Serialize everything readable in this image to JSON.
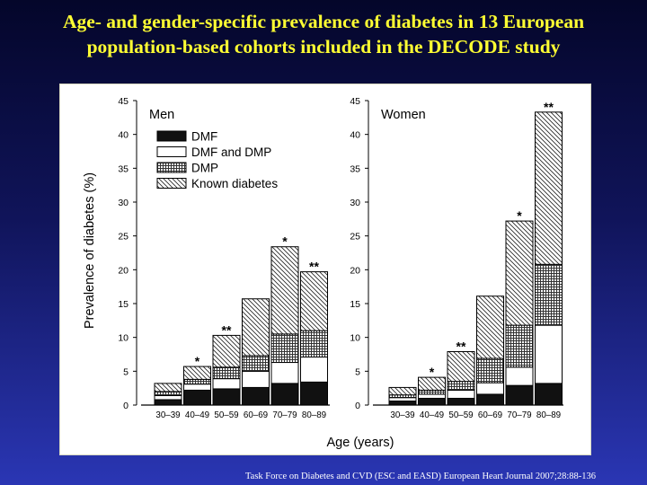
{
  "slide": {
    "title_line1": "Age- and gender-specific prevalence of diabetes in 13 European",
    "title_line2": "population-based cohorts included in the DECODE study",
    "citation": "Task Force on Diabetes and CVD (ESC and EASD) European Heart Journal 2007;28:88-136"
  },
  "chart_data": {
    "type": "bar",
    "stacked": true,
    "ylabel": "Prevalence of diabetes (%)",
    "xlabel": "Age (years)",
    "ylim": [
      0,
      45
    ],
    "yticks": [
      0,
      5,
      10,
      15,
      20,
      25,
      30,
      35,
      40,
      45
    ],
    "categories": [
      "30–39",
      "40–49",
      "50–59",
      "60–69",
      "70–79",
      "80–89"
    ],
    "legend": {
      "placement": "top-left of Men panel",
      "entries": [
        "DMF",
        "DMF and DMP",
        "DMP",
        "Known diabetes"
      ]
    },
    "panels": [
      {
        "name": "Men",
        "series": [
          {
            "name": "DMF",
            "fill": "solid",
            "values": [
              0.8,
              2.2,
              2.4,
              2.6,
              3.2,
              3.4
            ]
          },
          {
            "name": "DMF and DMP",
            "fill": "white",
            "values": [
              0.6,
              0.9,
              1.5,
              2.4,
              3.1,
              3.7
            ]
          },
          {
            "name": "DMP",
            "fill": "crosshatch",
            "values": [
              0.6,
              0.7,
              1.7,
              2.3,
              4.2,
              3.9
            ]
          },
          {
            "name": "Known diabetes",
            "fill": "diagonal",
            "values": [
              1.2,
              1.9,
              4.7,
              8.4,
              12.9,
              8.7
            ]
          }
        ],
        "annotations": [
          "",
          "*",
          "**",
          "",
          "*",
          "**"
        ]
      },
      {
        "name": "Women",
        "series": [
          {
            "name": "DMF",
            "fill": "solid",
            "values": [
              0.6,
              1.0,
              1.0,
              1.6,
              2.9,
              3.2
            ]
          },
          {
            "name": "DMF and DMP",
            "fill": "white",
            "values": [
              0.5,
              0.6,
              1.2,
              1.7,
              2.7,
              8.6
            ]
          },
          {
            "name": "DMP",
            "fill": "crosshatch",
            "values": [
              0.4,
              0.6,
              1.3,
              3.6,
              6.2,
              9.0
            ]
          },
          {
            "name": "Known diabetes",
            "fill": "diagonal",
            "values": [
              1.1,
              1.9,
              4.4,
              9.2,
              15.4,
              22.5
            ]
          }
        ],
        "annotations": [
          "",
          "*",
          "**",
          "",
          "*",
          "**"
        ]
      }
    ]
  }
}
